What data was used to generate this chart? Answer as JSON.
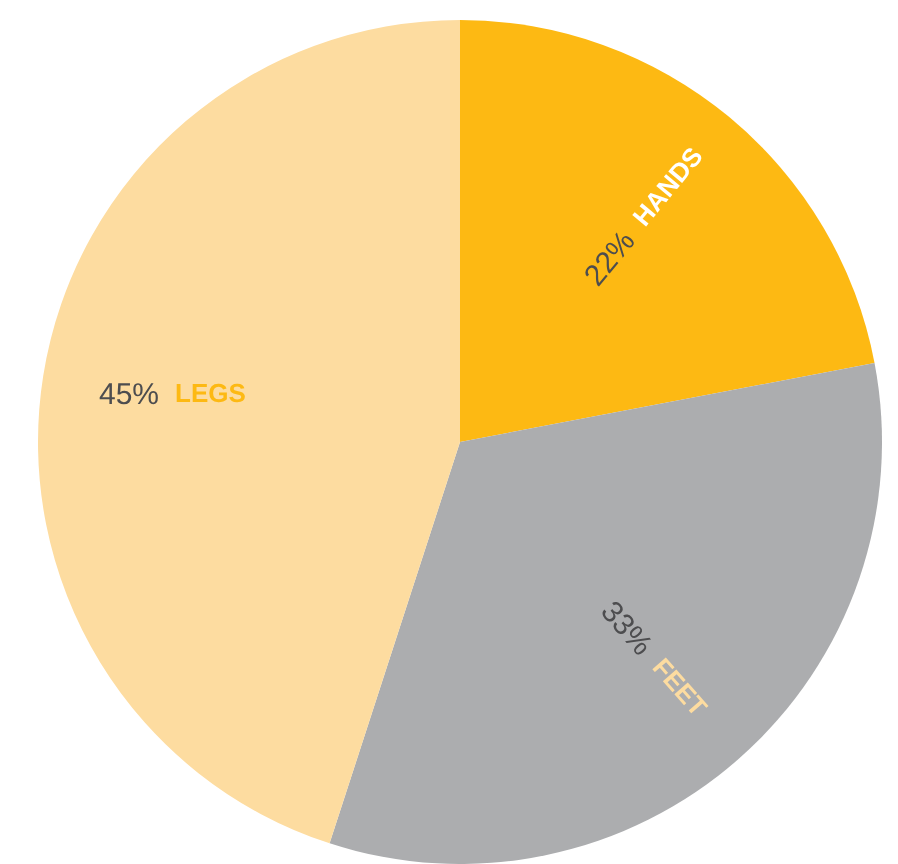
{
  "chart_data": {
    "type": "pie",
    "categories": [
      "HANDS",
      "FEET",
      "LEGS"
    ],
    "values": [
      22,
      33,
      45
    ],
    "value_labels": [
      "22%",
      "33%",
      "45%"
    ],
    "colors": [
      "#fdb913",
      "#acadaf",
      "#fddca0"
    ]
  }
}
